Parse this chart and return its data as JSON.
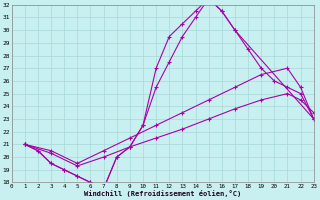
{
  "xlabel": "Windchill (Refroidissement éolien,°C)",
  "bg_color": "#c8f0f0",
  "grid_color": "#a8d8d8",
  "line_color": "#aa00aa",
  "xlim": [
    0,
    23
  ],
  "ylim": [
    18,
    32
  ],
  "xticks": [
    0,
    1,
    2,
    3,
    4,
    5,
    6,
    7,
    8,
    9,
    10,
    11,
    12,
    13,
    14,
    15,
    16,
    17,
    18,
    19,
    20,
    21,
    22,
    23
  ],
  "yticks": [
    18,
    19,
    20,
    21,
    22,
    23,
    24,
    25,
    26,
    27,
    28,
    29,
    30,
    31,
    32
  ],
  "series": [
    {
      "x": [
        1,
        2,
        3,
        4,
        5,
        6,
        7,
        8,
        9,
        10,
        11,
        12,
        13,
        14,
        15,
        16,
        17,
        23
      ],
      "y": [
        21,
        20.5,
        19.5,
        19,
        18.5,
        18.0,
        17.5,
        20,
        20.8,
        22.5,
        27,
        29.5,
        30.5,
        31.5,
        32.5,
        31.5,
        30,
        23
      ]
    },
    {
      "x": [
        1,
        2,
        3,
        4,
        5,
        6,
        7,
        8,
        9,
        10,
        11,
        12,
        13,
        14,
        15,
        16,
        17,
        18,
        19,
        20,
        21,
        22,
        23
      ],
      "y": [
        21,
        20.5,
        19.5,
        19,
        18.5,
        18.0,
        17.5,
        20,
        20.8,
        22.5,
        25.5,
        27.5,
        29.5,
        31.0,
        32.5,
        31.5,
        30,
        28.5,
        27.0,
        26.0,
        25.5,
        25.0,
        23.0
      ]
    },
    {
      "x": [
        1,
        3,
        5,
        7,
        9,
        11,
        13,
        15,
        17,
        19,
        21,
        22,
        23
      ],
      "y": [
        21,
        20.5,
        19.5,
        20.5,
        21.5,
        22.5,
        23.5,
        24.5,
        25.5,
        26.5,
        27.0,
        25.5,
        23.0
      ]
    },
    {
      "x": [
        1,
        3,
        5,
        7,
        9,
        11,
        13,
        15,
        17,
        19,
        21,
        22,
        23
      ],
      "y": [
        21,
        20.3,
        19.3,
        20.0,
        20.8,
        21.5,
        22.2,
        23.0,
        23.8,
        24.5,
        25.0,
        24.5,
        23.5
      ]
    }
  ]
}
